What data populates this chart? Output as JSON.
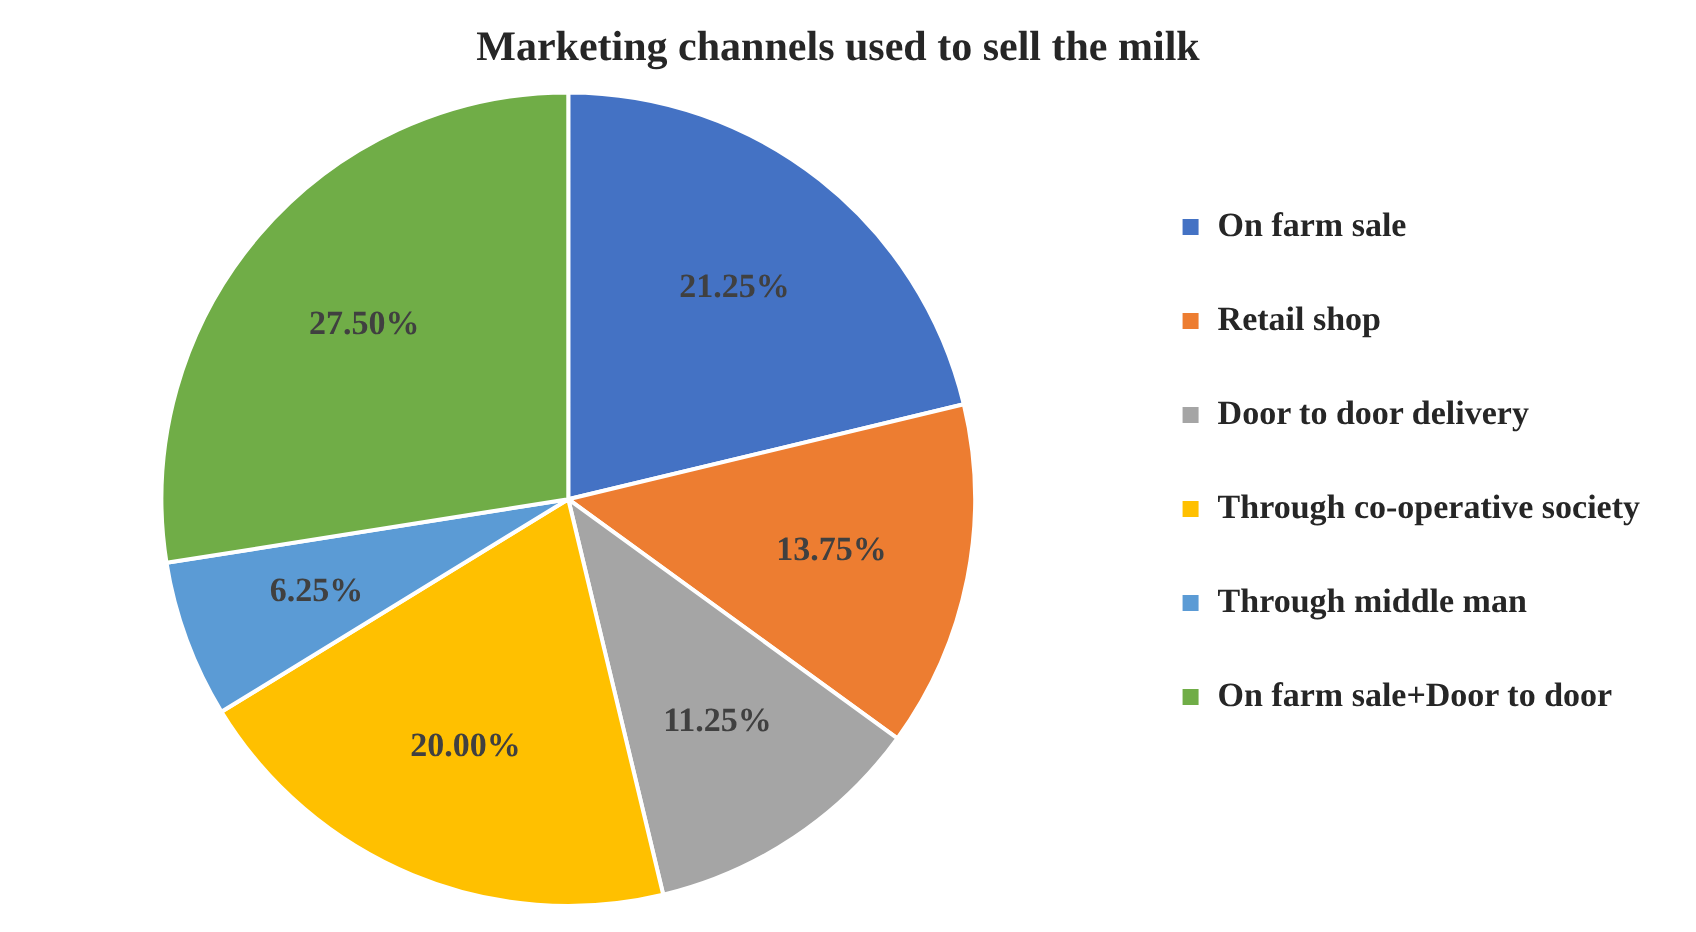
{
  "chart_data": {
    "type": "pie",
    "title": "Marketing channels used to sell the milk",
    "categories": [
      "On farm sale",
      "Retail shop",
      "Door to door delivery",
      "Through co-operative society",
      "Through middle man",
      "On farm sale+Door to door"
    ],
    "values": [
      21.25,
      13.75,
      11.25,
      20,
      6.25,
      27.5
    ],
    "value_labels": [
      "21.25%",
      "13.75%",
      "11.25%",
      "20.00%",
      "6.25%",
      "27.50%"
    ],
    "colors": [
      "#4472c4",
      "#ed7d31",
      "#a5a5a5",
      "#ffc000",
      "#5b9bd5",
      "#70ad47"
    ],
    "legend": "right"
  }
}
